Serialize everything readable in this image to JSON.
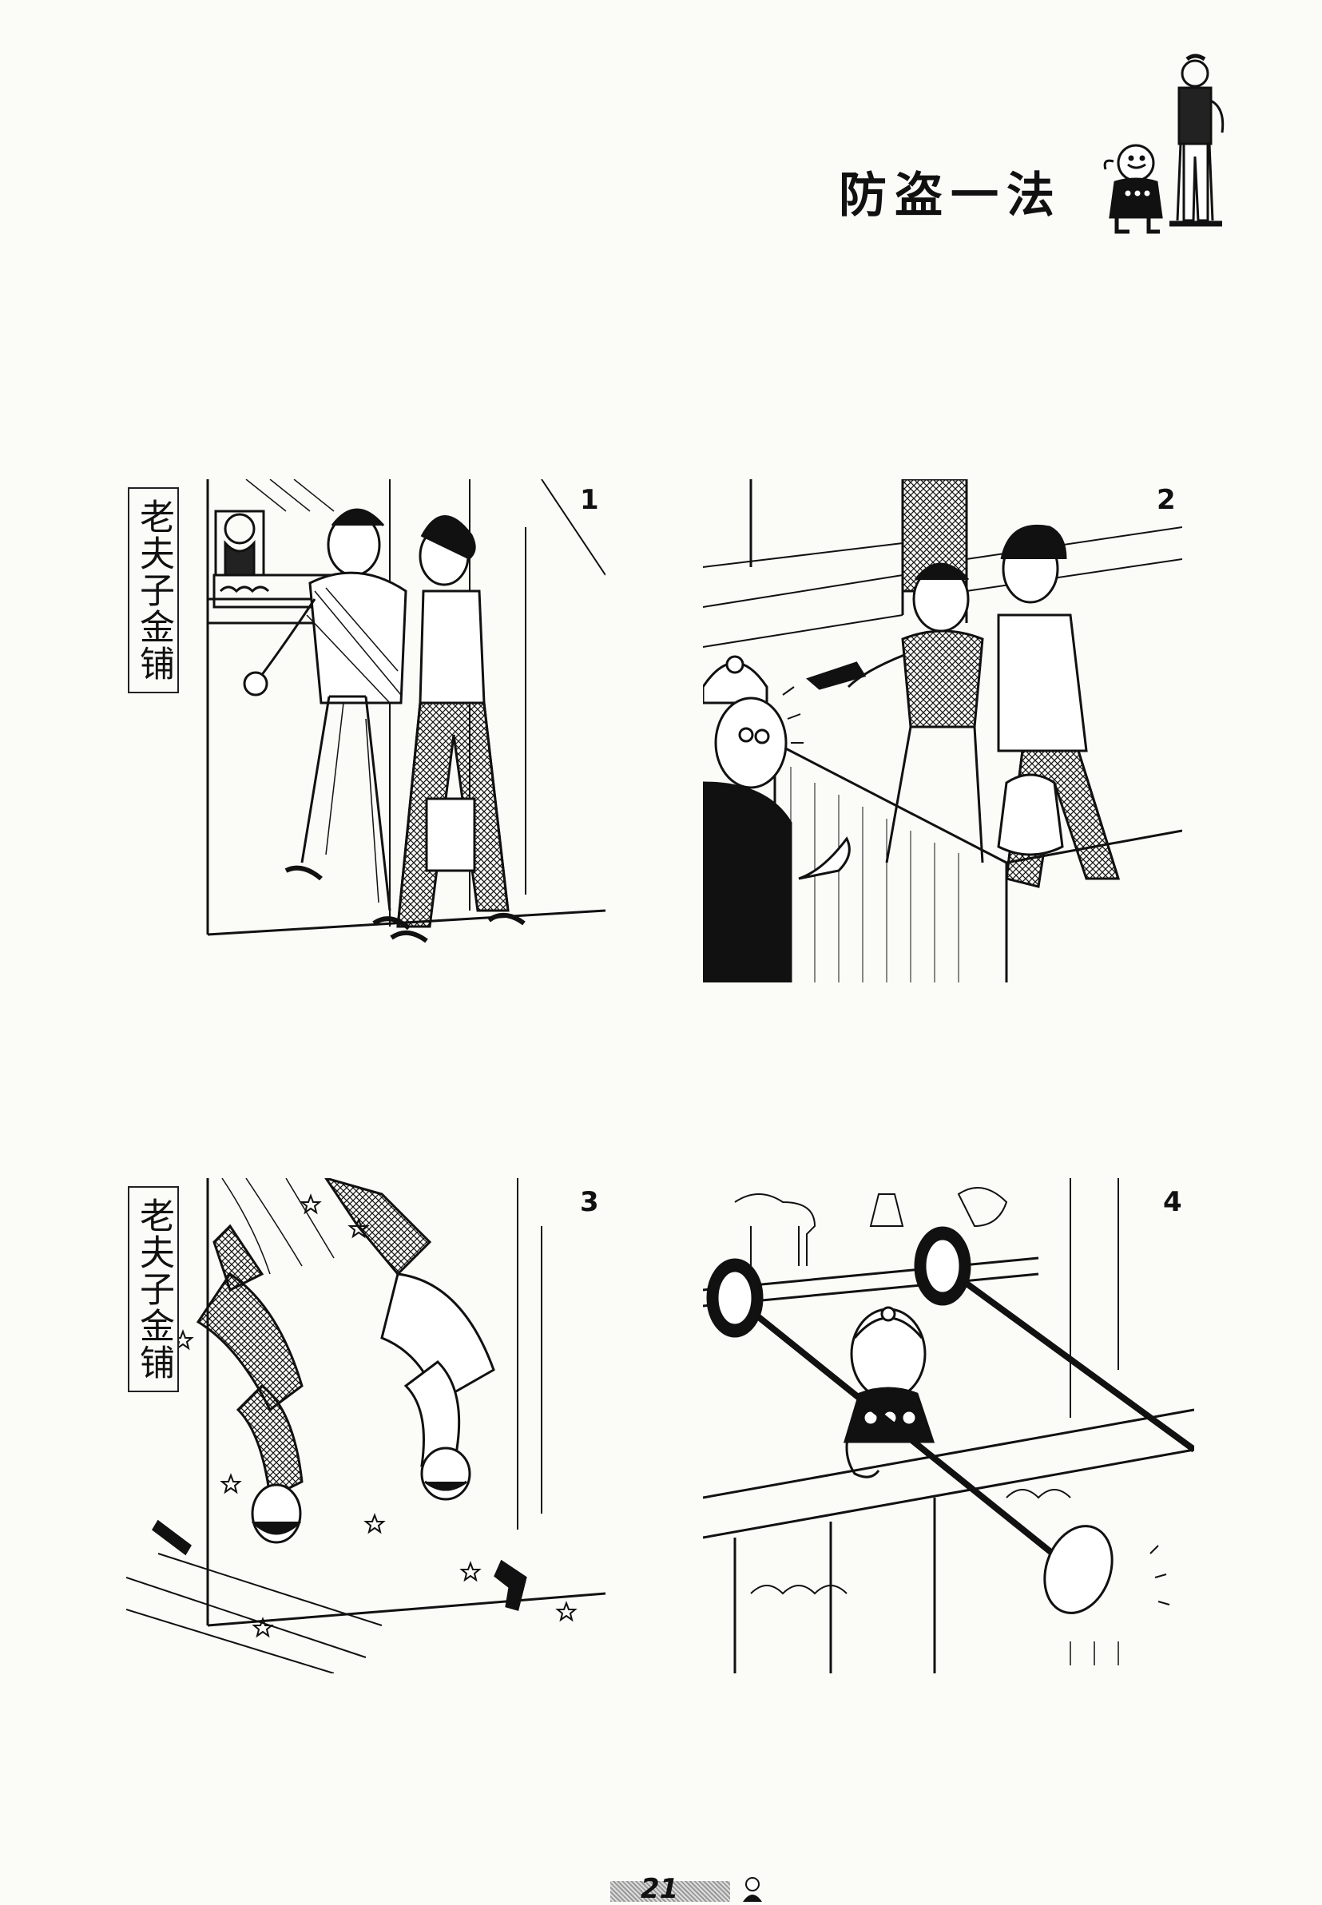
{
  "page": {
    "title": "防盗一法",
    "page_number": "21"
  },
  "panels": [
    {
      "number": "1",
      "sign": "老夫子金铺"
    },
    {
      "number": "2"
    },
    {
      "number": "3",
      "sign": "老夫子金铺"
    },
    {
      "number": "4"
    }
  ]
}
